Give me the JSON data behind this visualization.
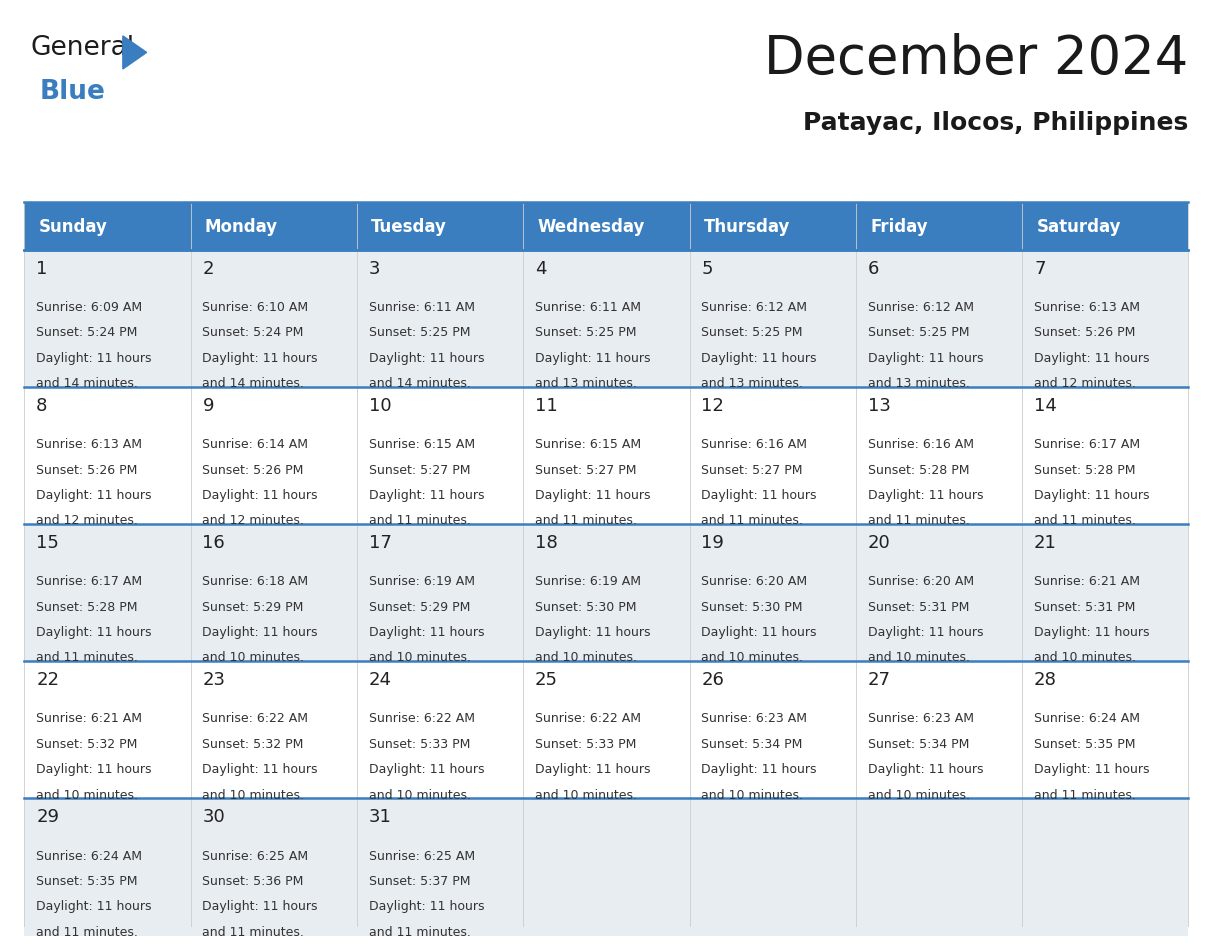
{
  "title": "December 2024",
  "subtitle": "Patayac, Ilocos, Philippines",
  "header_color": "#3a7ebf",
  "header_text_color": "#ffffff",
  "cell_bg_odd": "#e8edf2",
  "cell_bg_even": "#ffffff",
  "border_color": "#3a7ebf",
  "text_color": "#333333",
  "day_num_color": "#222222",
  "day_headers": [
    "Sunday",
    "Monday",
    "Tuesday",
    "Wednesday",
    "Thursday",
    "Friday",
    "Saturday"
  ],
  "days": [
    {
      "day": 1,
      "col": 0,
      "row": 0,
      "sunrise": "6:09 AM",
      "sunset": "5:24 PM",
      "dl1": "Daylight: 11 hours",
      "dl2": "and 14 minutes."
    },
    {
      "day": 2,
      "col": 1,
      "row": 0,
      "sunrise": "6:10 AM",
      "sunset": "5:24 PM",
      "dl1": "Daylight: 11 hours",
      "dl2": "and 14 minutes."
    },
    {
      "day": 3,
      "col": 2,
      "row": 0,
      "sunrise": "6:11 AM",
      "sunset": "5:25 PM",
      "dl1": "Daylight: 11 hours",
      "dl2": "and 14 minutes."
    },
    {
      "day": 4,
      "col": 3,
      "row": 0,
      "sunrise": "6:11 AM",
      "sunset": "5:25 PM",
      "dl1": "Daylight: 11 hours",
      "dl2": "and 13 minutes."
    },
    {
      "day": 5,
      "col": 4,
      "row": 0,
      "sunrise": "6:12 AM",
      "sunset": "5:25 PM",
      "dl1": "Daylight: 11 hours",
      "dl2": "and 13 minutes."
    },
    {
      "day": 6,
      "col": 5,
      "row": 0,
      "sunrise": "6:12 AM",
      "sunset": "5:25 PM",
      "dl1": "Daylight: 11 hours",
      "dl2": "and 13 minutes."
    },
    {
      "day": 7,
      "col": 6,
      "row": 0,
      "sunrise": "6:13 AM",
      "sunset": "5:26 PM",
      "dl1": "Daylight: 11 hours",
      "dl2": "and 12 minutes."
    },
    {
      "day": 8,
      "col": 0,
      "row": 1,
      "sunrise": "6:13 AM",
      "sunset": "5:26 PM",
      "dl1": "Daylight: 11 hours",
      "dl2": "and 12 minutes."
    },
    {
      "day": 9,
      "col": 1,
      "row": 1,
      "sunrise": "6:14 AM",
      "sunset": "5:26 PM",
      "dl1": "Daylight: 11 hours",
      "dl2": "and 12 minutes."
    },
    {
      "day": 10,
      "col": 2,
      "row": 1,
      "sunrise": "6:15 AM",
      "sunset": "5:27 PM",
      "dl1": "Daylight: 11 hours",
      "dl2": "and 11 minutes."
    },
    {
      "day": 11,
      "col": 3,
      "row": 1,
      "sunrise": "6:15 AM",
      "sunset": "5:27 PM",
      "dl1": "Daylight: 11 hours",
      "dl2": "and 11 minutes."
    },
    {
      "day": 12,
      "col": 4,
      "row": 1,
      "sunrise": "6:16 AM",
      "sunset": "5:27 PM",
      "dl1": "Daylight: 11 hours",
      "dl2": "and 11 minutes."
    },
    {
      "day": 13,
      "col": 5,
      "row": 1,
      "sunrise": "6:16 AM",
      "sunset": "5:28 PM",
      "dl1": "Daylight: 11 hours",
      "dl2": "and 11 minutes."
    },
    {
      "day": 14,
      "col": 6,
      "row": 1,
      "sunrise": "6:17 AM",
      "sunset": "5:28 PM",
      "dl1": "Daylight: 11 hours",
      "dl2": "and 11 minutes."
    },
    {
      "day": 15,
      "col": 0,
      "row": 2,
      "sunrise": "6:17 AM",
      "sunset": "5:28 PM",
      "dl1": "Daylight: 11 hours",
      "dl2": "and 11 minutes."
    },
    {
      "day": 16,
      "col": 1,
      "row": 2,
      "sunrise": "6:18 AM",
      "sunset": "5:29 PM",
      "dl1": "Daylight: 11 hours",
      "dl2": "and 10 minutes."
    },
    {
      "day": 17,
      "col": 2,
      "row": 2,
      "sunrise": "6:19 AM",
      "sunset": "5:29 PM",
      "dl1": "Daylight: 11 hours",
      "dl2": "and 10 minutes."
    },
    {
      "day": 18,
      "col": 3,
      "row": 2,
      "sunrise": "6:19 AM",
      "sunset": "5:30 PM",
      "dl1": "Daylight: 11 hours",
      "dl2": "and 10 minutes."
    },
    {
      "day": 19,
      "col": 4,
      "row": 2,
      "sunrise": "6:20 AM",
      "sunset": "5:30 PM",
      "dl1": "Daylight: 11 hours",
      "dl2": "and 10 minutes."
    },
    {
      "day": 20,
      "col": 5,
      "row": 2,
      "sunrise": "6:20 AM",
      "sunset": "5:31 PM",
      "dl1": "Daylight: 11 hours",
      "dl2": "and 10 minutes."
    },
    {
      "day": 21,
      "col": 6,
      "row": 2,
      "sunrise": "6:21 AM",
      "sunset": "5:31 PM",
      "dl1": "Daylight: 11 hours",
      "dl2": "and 10 minutes."
    },
    {
      "day": 22,
      "col": 0,
      "row": 3,
      "sunrise": "6:21 AM",
      "sunset": "5:32 PM",
      "dl1": "Daylight: 11 hours",
      "dl2": "and 10 minutes."
    },
    {
      "day": 23,
      "col": 1,
      "row": 3,
      "sunrise": "6:22 AM",
      "sunset": "5:32 PM",
      "dl1": "Daylight: 11 hours",
      "dl2": "and 10 minutes."
    },
    {
      "day": 24,
      "col": 2,
      "row": 3,
      "sunrise": "6:22 AM",
      "sunset": "5:33 PM",
      "dl1": "Daylight: 11 hours",
      "dl2": "and 10 minutes."
    },
    {
      "day": 25,
      "col": 3,
      "row": 3,
      "sunrise": "6:22 AM",
      "sunset": "5:33 PM",
      "dl1": "Daylight: 11 hours",
      "dl2": "and 10 minutes."
    },
    {
      "day": 26,
      "col": 4,
      "row": 3,
      "sunrise": "6:23 AM",
      "sunset": "5:34 PM",
      "dl1": "Daylight: 11 hours",
      "dl2": "and 10 minutes."
    },
    {
      "day": 27,
      "col": 5,
      "row": 3,
      "sunrise": "6:23 AM",
      "sunset": "5:34 PM",
      "dl1": "Daylight: 11 hours",
      "dl2": "and 10 minutes."
    },
    {
      "day": 28,
      "col": 6,
      "row": 3,
      "sunrise": "6:24 AM",
      "sunset": "5:35 PM",
      "dl1": "Daylight: 11 hours",
      "dl2": "and 11 minutes."
    },
    {
      "day": 29,
      "col": 0,
      "row": 4,
      "sunrise": "6:24 AM",
      "sunset": "5:35 PM",
      "dl1": "Daylight: 11 hours",
      "dl2": "and 11 minutes."
    },
    {
      "day": 30,
      "col": 1,
      "row": 4,
      "sunrise": "6:25 AM",
      "sunset": "5:36 PM",
      "dl1": "Daylight: 11 hours",
      "dl2": "and 11 minutes."
    },
    {
      "day": 31,
      "col": 2,
      "row": 4,
      "sunrise": "6:25 AM",
      "sunset": "5:37 PM",
      "dl1": "Daylight: 11 hours",
      "dl2": "and 11 minutes."
    }
  ],
  "n_rows": 5,
  "n_cols": 7,
  "fig_width": 11.88,
  "fig_height": 9.18,
  "title_fontsize": 38,
  "subtitle_fontsize": 18,
  "header_fontsize": 12,
  "daynum_fontsize": 13,
  "cell_fontsize": 9
}
